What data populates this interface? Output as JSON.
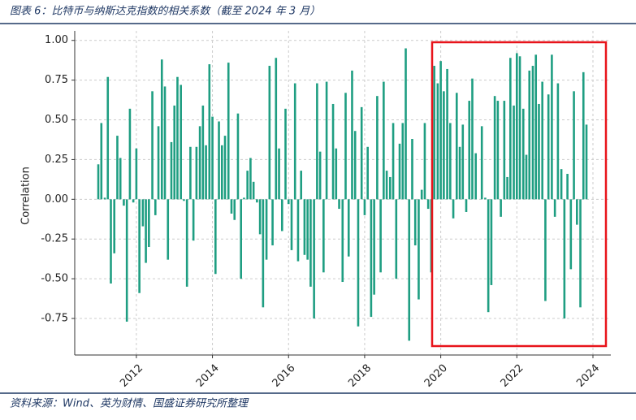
{
  "header": {
    "title": "图表 6：比特币与纳斯达克指数的相关系数（截至 2024 年 3 月）"
  },
  "footer": {
    "source": "资料来源：Wind、英为财情、国盛证券研究所整理"
  },
  "chart_data": {
    "type": "bar",
    "y_label": "Correlation",
    "color": "#1f9e82",
    "grid": true,
    "x": [
      2011.0,
      2011.08,
      2011.17,
      2011.25,
      2011.33,
      2011.42,
      2011.5,
      2011.58,
      2011.67,
      2011.75,
      2011.83,
      2011.92,
      2012.0,
      2012.08,
      2012.17,
      2012.25,
      2012.33,
      2012.42,
      2012.5,
      2012.58,
      2012.67,
      2012.75,
      2012.83,
      2012.92,
      2013.0,
      2013.08,
      2013.17,
      2013.25,
      2013.33,
      2013.42,
      2013.5,
      2013.58,
      2013.67,
      2013.75,
      2013.83,
      2013.92,
      2014.0,
      2014.08,
      2014.17,
      2014.25,
      2014.33,
      2014.42,
      2014.5,
      2014.58,
      2014.67,
      2014.75,
      2014.83,
      2014.92,
      2015.0,
      2015.08,
      2015.17,
      2015.25,
      2015.33,
      2015.42,
      2015.5,
      2015.58,
      2015.67,
      2015.75,
      2015.83,
      2015.92,
      2016.0,
      2016.08,
      2016.17,
      2016.25,
      2016.33,
      2016.42,
      2016.5,
      2016.58,
      2016.67,
      2016.75,
      2016.83,
      2016.92,
      2017.0,
      2017.08,
      2017.17,
      2017.25,
      2017.33,
      2017.42,
      2017.5,
      2017.58,
      2017.67,
      2017.75,
      2017.83,
      2017.92,
      2018.0,
      2018.08,
      2018.17,
      2018.25,
      2018.33,
      2018.42,
      2018.5,
      2018.58,
      2018.67,
      2018.75,
      2018.83,
      2018.92,
      2019.0,
      2019.08,
      2019.17,
      2019.25,
      2019.33,
      2019.42,
      2019.5,
      2019.58,
      2019.67,
      2019.75,
      2019.83,
      2019.92,
      2020.0,
      2020.08,
      2020.17,
      2020.25,
      2020.33,
      2020.42,
      2020.5,
      2020.58,
      2020.67,
      2020.75,
      2020.83,
      2020.92,
      2021.0,
      2021.08,
      2021.17,
      2021.25,
      2021.33,
      2021.42,
      2021.5,
      2021.58,
      2021.67,
      2021.75,
      2021.83,
      2021.92,
      2022.0,
      2022.08,
      2022.17,
      2022.25,
      2022.33,
      2022.42,
      2022.5,
      2022.58,
      2022.67,
      2022.75,
      2022.83,
      2022.92,
      2023.0,
      2023.08,
      2023.17,
      2023.25,
      2023.33,
      2023.42,
      2023.5,
      2023.58,
      2023.67,
      2023.75,
      2023.83
    ],
    "values": [
      0.22,
      0.48,
      0.01,
      0.77,
      -0.53,
      -0.34,
      0.4,
      0.26,
      -0.04,
      -0.77,
      0.57,
      -0.02,
      0.32,
      -0.59,
      -0.17,
      -0.4,
      -0.3,
      0.68,
      -0.1,
      0.46,
      0.88,
      0.71,
      -0.38,
      0.36,
      0.59,
      0.77,
      0.72,
      -0.01,
      -0.55,
      0.33,
      -0.26,
      0.33,
      0.46,
      0.59,
      0.34,
      0.85,
      0.52,
      -0.47,
      0.49,
      0.34,
      0.4,
      0.86,
      -0.09,
      -0.13,
      0.54,
      -0.5,
      0.01,
      0.18,
      0.26,
      0.11,
      -0.02,
      -0.22,
      -0.68,
      -0.38,
      0.84,
      -0.29,
      0.89,
      0.32,
      -0.2,
      0.57,
      -0.03,
      -0.32,
      0.73,
      -0.39,
      0.18,
      -0.35,
      -0.38,
      -0.55,
      -0.75,
      0.73,
      0.3,
      -0.46,
      0.74,
      0.0,
      0.6,
      0.32,
      -0.06,
      -0.52,
      0.67,
      -0.36,
      0.81,
      0.43,
      -0.8,
      0.58,
      -0.1,
      0.33,
      -0.74,
      -0.6,
      0.65,
      -0.46,
      0.74,
      0.18,
      0.14,
      0.48,
      -0.5,
      0.35,
      0.48,
      0.95,
      -0.89,
      0.38,
      -0.29,
      -0.63,
      0.06,
      0.48,
      -0.06,
      -0.46,
      0.84,
      0.73,
      0.87,
      0.68,
      0.82,
      0.48,
      -0.12,
      0.67,
      0.33,
      0.47,
      -0.08,
      0.62,
      0.76,
      0.29,
      0.0,
      0.46,
      0.01,
      -0.71,
      -0.54,
      0.65,
      0.62,
      -0.11,
      0.62,
      0.14,
      0.89,
      0.59,
      0.92,
      0.9,
      0.57,
      0.28,
      0.81,
      0.84,
      0.91,
      0.6,
      0.74,
      -0.64,
      0.66,
      0.91,
      -0.11,
      0.73,
      0.19,
      -0.75,
      0.16,
      -0.44,
      0.68,
      -0.16,
      -0.68,
      0.8,
      0.47
    ],
    "xlim": [
      2010.38,
      2024.47
    ],
    "xticks": [
      2012,
      2014,
      2016,
      2018,
      2020,
      2022,
      2024
    ],
    "ylim": [
      -0.98,
      1.06
    ],
    "yticks": [
      -0.75,
      {
        "value": -0.5,
        "label": "-0.50"
      },
      -0.25,
      {
        "value": 0,
        "label": "0.00"
      },
      0.25,
      {
        "value": 0.5,
        "label": "0.50"
      },
      0.75,
      {
        "value": 1,
        "label": "1.00"
      }
    ]
  }
}
